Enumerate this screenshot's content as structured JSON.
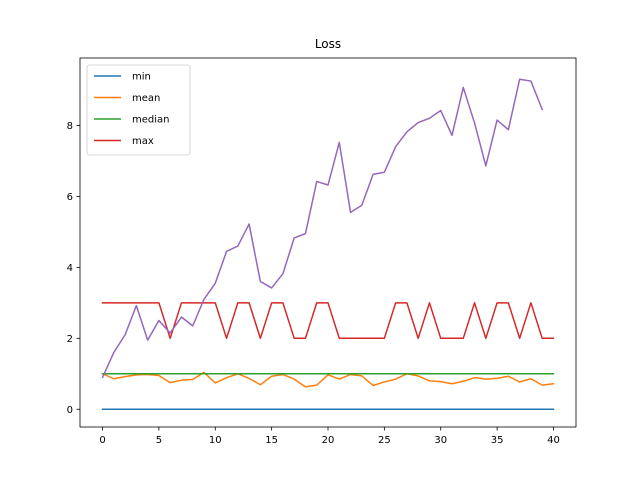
{
  "chart_data": {
    "type": "line",
    "title": "Loss",
    "xlabel": "",
    "ylabel": "",
    "xlim": [
      -2,
      42
    ],
    "ylim": [
      -0.5,
      9.9
    ],
    "x_ticks": [
      0,
      5,
      10,
      15,
      20,
      25,
      30,
      35,
      40
    ],
    "y_ticks": [
      0,
      2,
      4,
      6,
      8
    ],
    "grid": false,
    "legend_position": "top-left",
    "series": [
      {
        "name": "min",
        "color": "#1f77b4",
        "x": [
          0,
          1,
          2,
          3,
          4,
          5,
          6,
          7,
          8,
          9,
          10,
          11,
          12,
          13,
          14,
          15,
          16,
          17,
          18,
          19,
          20,
          21,
          22,
          23,
          24,
          25,
          26,
          27,
          28,
          29,
          30,
          31,
          32,
          33,
          34,
          35,
          36,
          37,
          38,
          39,
          40
        ],
        "values": [
          0,
          0,
          0,
          0,
          0,
          0,
          0,
          0,
          0,
          0,
          0,
          0,
          0,
          0,
          0,
          0,
          0,
          0,
          0,
          0,
          0,
          0,
          0,
          0,
          0,
          0,
          0,
          0,
          0,
          0,
          0,
          0,
          0,
          0,
          0,
          0,
          0,
          0,
          0,
          0,
          0
        ]
      },
      {
        "name": "mean",
        "color": "#ff7f0e",
        "x": [
          0,
          1,
          2,
          3,
          4,
          5,
          6,
          7,
          8,
          9,
          10,
          11,
          12,
          13,
          14,
          15,
          16,
          17,
          18,
          19,
          20,
          21,
          22,
          23,
          24,
          25,
          26,
          27,
          28,
          29,
          30,
          31,
          32,
          33,
          34,
          35,
          36,
          37,
          38,
          39,
          40
        ],
        "values": [
          1.0,
          0.86,
          0.92,
          0.97,
          0.98,
          0.95,
          0.75,
          0.82,
          0.84,
          1.04,
          0.74,
          0.89,
          1.0,
          0.87,
          0.69,
          0.93,
          0.98,
          0.85,
          0.63,
          0.68,
          0.97,
          0.85,
          0.98,
          0.94,
          0.67,
          0.77,
          0.85,
          1.0,
          0.94,
          0.8,
          0.78,
          0.72,
          0.79,
          0.89,
          0.85,
          0.87,
          0.93,
          0.77,
          0.86,
          0.68,
          0.72
        ]
      },
      {
        "name": "median",
        "color": "#2ca02c",
        "x": [
          0,
          1,
          2,
          3,
          4,
          5,
          6,
          7,
          8,
          9,
          10,
          11,
          12,
          13,
          14,
          15,
          16,
          17,
          18,
          19,
          20,
          21,
          22,
          23,
          24,
          25,
          26,
          27,
          28,
          29,
          30,
          31,
          32,
          33,
          34,
          35,
          36,
          37,
          38,
          39,
          40
        ],
        "values": [
          1,
          1,
          1,
          1,
          1,
          1,
          1,
          1,
          1,
          1,
          1,
          1,
          1,
          1,
          1,
          1,
          1,
          1,
          1,
          1,
          1,
          1,
          1,
          1,
          1,
          1,
          1,
          1,
          1,
          1,
          1,
          1,
          1,
          1,
          1,
          1,
          1,
          1,
          1,
          1,
          1
        ]
      },
      {
        "name": "max",
        "color": "#d62728",
        "x": [
          0,
          1,
          2,
          3,
          4,
          5,
          6,
          7,
          8,
          9,
          10,
          11,
          12,
          13,
          14,
          15,
          16,
          17,
          18,
          19,
          20,
          21,
          22,
          23,
          24,
          25,
          26,
          27,
          28,
          29,
          30,
          31,
          32,
          33,
          34,
          35,
          36,
          37,
          38,
          39,
          40
        ],
        "values": [
          3,
          3,
          3,
          3,
          3,
          3,
          2,
          3,
          3,
          3,
          3,
          2,
          3,
          3,
          2,
          3,
          3,
          2,
          2,
          3,
          3,
          2,
          2,
          2,
          2,
          2,
          3,
          3,
          2,
          3,
          2,
          2,
          2,
          3,
          2,
          3,
          3,
          2,
          3,
          2,
          2
        ]
      },
      {
        "name": "",
        "color": "#9467bd",
        "x": [
          0,
          1,
          2,
          3,
          4,
          5,
          6,
          7,
          8,
          9,
          10,
          11,
          12,
          13,
          14,
          15,
          16,
          17,
          18,
          19,
          20,
          21,
          22,
          23,
          24,
          25,
          26,
          27,
          28,
          29,
          30,
          31,
          32,
          33,
          34,
          35,
          36,
          37,
          38,
          39
        ],
        "values": [
          0.9,
          1.6,
          2.1,
          2.92,
          1.95,
          2.5,
          2.15,
          2.6,
          2.35,
          3.1,
          3.55,
          4.45,
          4.6,
          5.22,
          3.6,
          3.42,
          3.82,
          4.83,
          4.95,
          6.42,
          6.32,
          7.52,
          5.55,
          5.75,
          6.62,
          6.68,
          7.4,
          7.82,
          8.08,
          8.2,
          8.42,
          7.72,
          9.07,
          8.07,
          6.86,
          8.15,
          7.88,
          9.3,
          9.25,
          8.45
        ]
      }
    ]
  }
}
